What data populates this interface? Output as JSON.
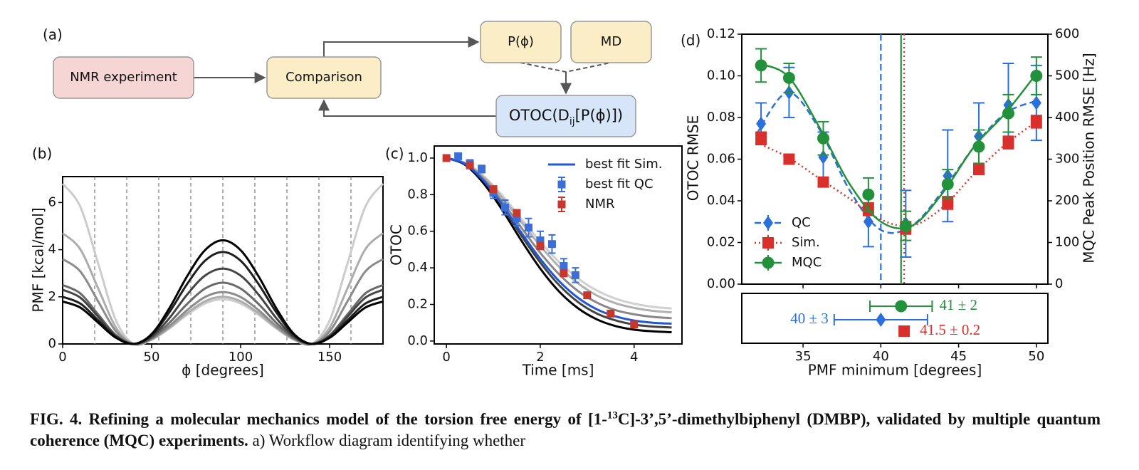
{
  "diagram": {
    "label": "(a)",
    "nodes": [
      {
        "label": "NMR experiment"
      },
      {
        "label": "Comparison"
      },
      {
        "label": "P(ϕ)"
      },
      {
        "label": "MD"
      },
      {
        "label_parts": [
          "OTOC(D",
          "ij",
          "[P(ϕ)])"
        ]
      }
    ]
  },
  "chart_data": [
    {
      "type": "line",
      "panel_label": "(b)",
      "xlabel": "ϕ [degrees]",
      "ylabel": "PMF [kcal/mol]",
      "x": [
        0,
        10,
        20,
        30,
        40,
        50,
        60,
        70,
        80,
        90,
        100,
        110,
        120,
        130,
        140,
        150,
        160,
        170,
        180
      ],
      "series": [
        {
          "color": "#cccccc",
          "values": [
            6.8,
            5.81,
            3.4,
            0.99,
            0,
            0.18,
            0.66,
            1.24,
            1.72,
            1.9,
            1.72,
            1.24,
            0.66,
            0.18,
            0,
            0.99,
            3.4,
            5.81,
            6.8
          ]
        },
        {
          "color": "#acacac",
          "values": [
            4.7,
            4.01,
            2.35,
            0.69,
            0,
            0.19,
            0.69,
            1.31,
            1.81,
            2.0,
            1.81,
            1.31,
            0.69,
            0.19,
            0,
            0.69,
            2.35,
            4.01,
            4.7
          ]
        },
        {
          "color": "#8c8c8c",
          "values": [
            3.6,
            3.07,
            1.8,
            0.53,
            0,
            0.21,
            0.76,
            1.44,
            1.99,
            2.2,
            1.99,
            1.44,
            0.76,
            0.21,
            0,
            0.53,
            1.8,
            3.07,
            3.6
          ]
        },
        {
          "color": "#6a6a6a",
          "values": [
            2.5,
            2.14,
            1.25,
            0.37,
            0,
            0.25,
            0.9,
            1.7,
            2.35,
            2.6,
            2.35,
            1.7,
            0.9,
            0.25,
            0,
            0.37,
            1.25,
            2.14,
            2.5
          ]
        },
        {
          "color": "#444444",
          "values": [
            2.3,
            1.96,
            1.15,
            0.34,
            0,
            0.3,
            1.1,
            2.1,
            2.9,
            3.2,
            2.9,
            2.1,
            1.1,
            0.3,
            0,
            0.34,
            1.15,
            1.96,
            2.3
          ]
        },
        {
          "color": "#1e1e1e",
          "values": [
            2.0,
            1.71,
            1.0,
            0.29,
            0,
            0.37,
            1.35,
            2.55,
            3.53,
            3.9,
            3.53,
            2.55,
            1.35,
            0.37,
            0,
            0.29,
            1.0,
            1.71,
            2.0
          ]
        },
        {
          "color": "#000000",
          "values": [
            1.8,
            1.54,
            0.9,
            0.26,
            0,
            0.42,
            1.52,
            2.88,
            3.98,
            4.4,
            3.98,
            2.88,
            1.52,
            0.42,
            0,
            0.26,
            0.9,
            1.54,
            1.8
          ]
        }
      ],
      "vlines": [
        18,
        36,
        54,
        72,
        90,
        108,
        126,
        144,
        162
      ],
      "xlim": [
        0,
        180
      ],
      "ylim": [
        0,
        7.1
      ],
      "xticks": [
        0,
        50,
        100,
        150
      ],
      "yticks": [
        0,
        2,
        4,
        6
      ]
    },
    {
      "type": "line",
      "panel_label": "(c)",
      "xlabel": "Time [ms]",
      "ylabel": "OTOC",
      "x": [
        0,
        0.4,
        0.8,
        1.2,
        1.6,
        2.0,
        2.4,
        2.8,
        3.2,
        3.6,
        4.0,
        4.4,
        4.8
      ],
      "series": [
        {
          "color": "#d0d0d0",
          "values": [
            1,
            0.974,
            0.9,
            0.793,
            0.667,
            0.543,
            0.432,
            0.343,
            0.277,
            0.232,
            0.204,
            0.187,
            0.178
          ]
        },
        {
          "color": "#b0b0b0",
          "values": [
            1,
            0.972,
            0.894,
            0.78,
            0.649,
            0.52,
            0.406,
            0.316,
            0.25,
            0.207,
            0.181,
            0.165,
            0.157
          ]
        },
        {
          "color": "#888888",
          "values": [
            1,
            0.969,
            0.883,
            0.759,
            0.618,
            0.482,
            0.365,
            0.274,
            0.211,
            0.169,
            0.146,
            0.132,
            0.125
          ]
        },
        {
          "color": "#444444",
          "values": [
            1,
            0.966,
            0.869,
            0.73,
            0.575,
            0.429,
            0.306,
            0.214,
            0.151,
            0.113,
            0.09,
            0.079,
            0.074
          ]
        },
        {
          "color": "#000000",
          "values": [
            1,
            0.963,
            0.859,
            0.712,
            0.548,
            0.396,
            0.271,
            0.18,
            0.119,
            0.082,
            0.062,
            0.053,
            0.048
          ]
        },
        {
          "name": "best fit Sim.",
          "color": "#2156d6",
          "values": [
            1,
            0.967,
            0.874,
            0.741,
            0.591,
            0.449,
            0.328,
            0.237,
            0.174,
            0.135,
            0.112,
            0.1,
            0.095
          ]
        }
      ],
      "points": [
        {
          "name": "best fit QC",
          "color": "#3b6fd6",
          "marker": "square",
          "x": [
            0.25,
            0.5,
            0.75,
            1.0,
            1.25,
            1.5,
            1.75,
            2.0,
            2.25,
            2.5,
            2.75
          ],
          "values": [
            1.01,
            0.97,
            0.94,
            0.81,
            0.73,
            0.67,
            0.62,
            0.55,
            0.53,
            0.41,
            0.36
          ],
          "errors": [
            0.015,
            0.02,
            0.02,
            0.03,
            0.04,
            0.04,
            0.05,
            0.05,
            0.05,
            0.04,
            0.04
          ]
        },
        {
          "name": "NMR",
          "color": "#c8372d",
          "marker": "square",
          "x": [
            0,
            0.5,
            1.0,
            1.5,
            2.0,
            2.5,
            3.0,
            3.5,
            4.0
          ],
          "values": [
            1.0,
            0.96,
            0.83,
            0.7,
            0.52,
            0.37,
            0.25,
            0.15,
            0.09
          ],
          "errors": [
            0.01,
            0.015,
            0.015,
            0.015,
            0.015,
            0.015,
            0.01,
            0.01,
            0.01
          ]
        }
      ],
      "xlim": [
        -0.26,
        5.02
      ],
      "ylim": [
        -0.016,
        1.066
      ],
      "xticks": [
        0,
        2,
        4
      ],
      "yticks": [
        {
          "value": 0,
          "label": "0.0"
        },
        0.2,
        0.4,
        0.6,
        0.8,
        {
          "value": 1,
          "label": "1.0"
        }
      ],
      "legend": "upper right"
    },
    {
      "type": "scatter",
      "panel_label": "(d)",
      "xlabel": "PMF minimum [degrees]",
      "ylabel": "OTOC RMSE",
      "y2label": "MQC Peak Position RMSE [Hz]",
      "x": [
        32.3,
        34.1,
        36.3,
        39.2,
        41.6,
        44.3,
        46.3,
        48.2,
        50.0
      ],
      "fit_x": [
        32,
        34,
        36,
        38,
        40,
        42,
        44,
        46,
        48,
        50
      ],
      "series": [
        {
          "name": "QC",
          "color": "#2a6fdb",
          "marker": "diamond",
          "line": "dashed",
          "values": [
            0.077,
            0.092,
            0.061,
            0.03,
            0.029,
            0.052,
            0.071,
            0.086,
            0.087
          ],
          "errors": [
            0.01,
            0.012,
            0.012,
            0.012,
            0.016,
            0.022,
            0.016,
            0.02,
            0.018
          ],
          "fit": [
            0.072,
            0.092,
            0.075,
            0.045,
            0.026,
            0.028,
            0.045,
            0.066,
            0.082,
            0.088
          ],
          "minimum": 40,
          "minimum_error": 3,
          "minimum_label": "40 ± 3"
        },
        {
          "name": "Sim.",
          "color": "#d9302c",
          "marker": "square",
          "line": "dotted",
          "values": [
            0.07,
            0.06,
            0.049,
            0.036,
            0.027,
            0.039,
            0.055,
            0.068,
            0.078
          ],
          "errors": [
            0.003,
            0.002,
            0.002,
            0.003,
            0.003,
            0.003,
            0.002,
            0.003,
            0.003
          ],
          "fit": [
            0.068,
            0.061,
            0.051,
            0.041,
            0.031,
            0.028,
            0.037,
            0.053,
            0.067,
            0.078
          ],
          "minimum": 41.5,
          "minimum_error": 0.2,
          "minimum_label": "41.5 ± 0.2"
        },
        {
          "name": "MQC",
          "color": "#23913b",
          "marker": "circle",
          "line": "solid",
          "axis": "y2",
          "values": [
            525,
            495,
            350,
            215,
            140,
            240,
            330,
            410,
            500
          ],
          "errors": [
            40,
            35,
            40,
            40,
            35,
            35,
            40,
            45,
            45
          ],
          "fit": [
            530,
            500,
            380,
            240,
            150,
            140,
            220,
            330,
            410,
            505
          ],
          "minimum": 41.3,
          "minimum_error": 2,
          "minimum_label": "41 ± 2"
        }
      ],
      "xlim": [
        31.06,
        50.74
      ],
      "ylim": [
        0,
        0.12
      ],
      "y2lim": [
        0,
        600
      ],
      "xticks": [
        35,
        40,
        45,
        50
      ],
      "yticks": [
        {
          "value": 0,
          "label": "0.00"
        },
        0.02,
        0.04,
        0.06,
        0.08,
        {
          "value": 0.1,
          "label": "0.10"
        },
        0.12
      ],
      "y2ticks": [
        0,
        100,
        200,
        300,
        400,
        500,
        600
      ],
      "legend": "lower left"
    }
  ],
  "caption": {
    "label": "FIG. 4.",
    "title_parts": [
      "Refining a molecular mechanics model of the torsion free energy of [1-",
      "13",
      "C]-3’,5’-dimethylbiphenyl (DMBP), validated by multiple quantum coherence (MQC) experiments."
    ],
    "body": "a) Workflow diagram identifying whether"
  }
}
